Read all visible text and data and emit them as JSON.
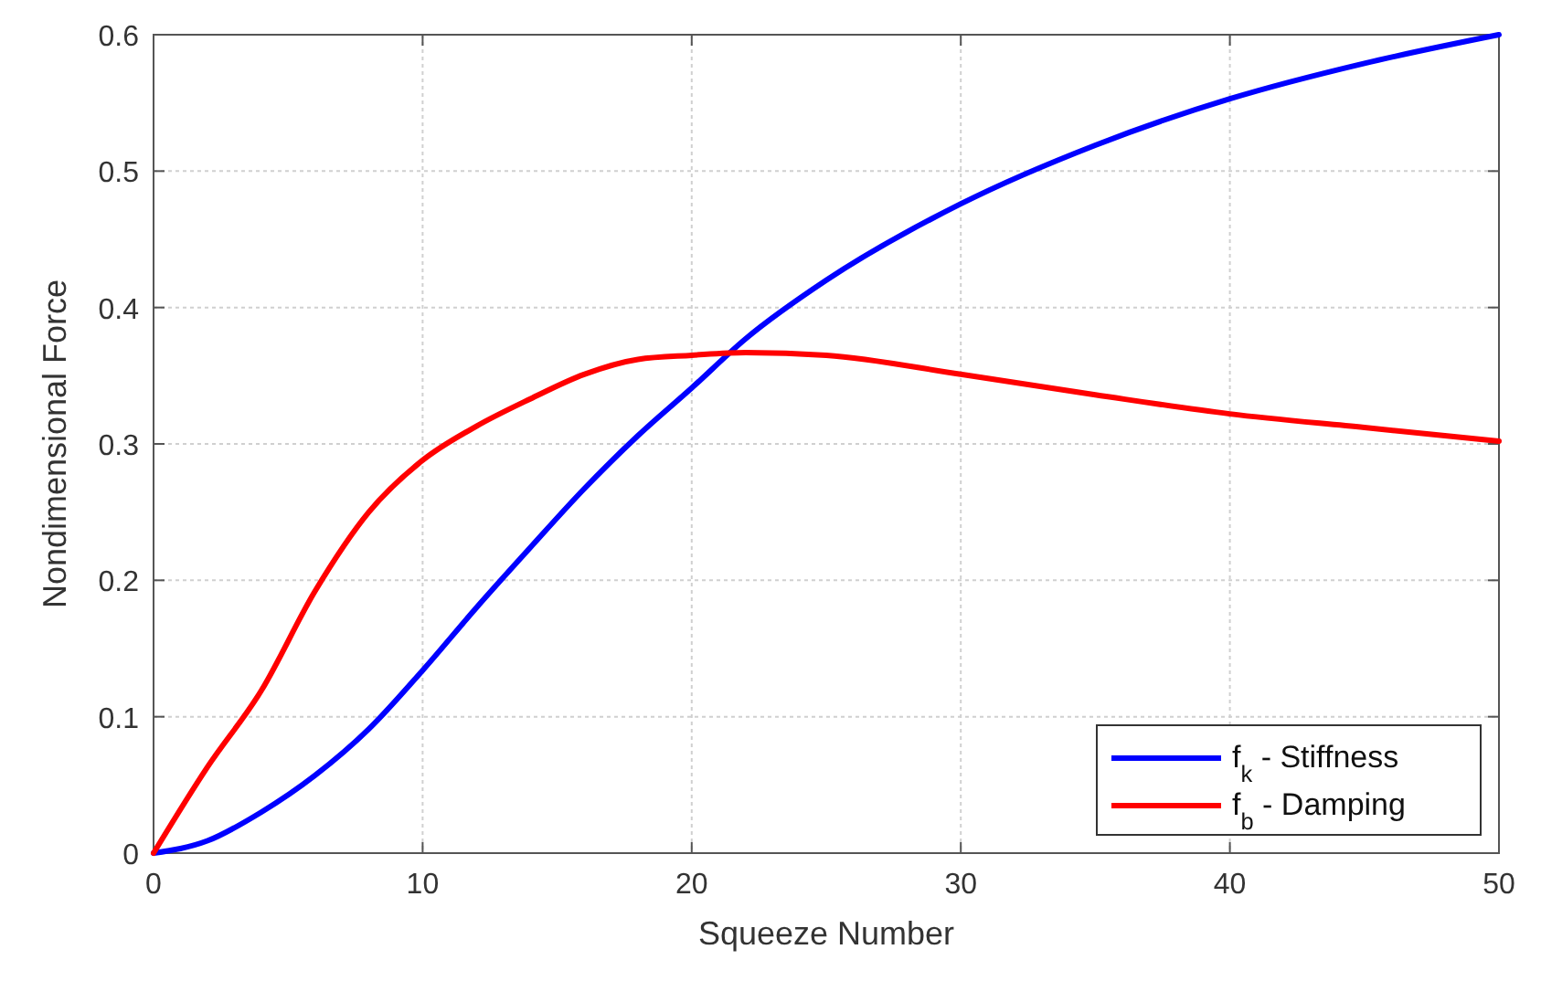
{
  "chart_data": {
    "type": "line",
    "xlabel": "Squeeze Number",
    "ylabel": "Nondimensional Force",
    "x": [
      0,
      2,
      4,
      6,
      8,
      10,
      12,
      14,
      16,
      18,
      20,
      22,
      25,
      30,
      35,
      40,
      45,
      50
    ],
    "series": [
      {
        "name": "f$_{k}$ - Stiffness",
        "color": "#0000ff",
        "values": [
          0,
          0.009,
          0.03,
          0.057,
          0.091,
          0.134,
          0.18,
          0.224,
          0.267,
          0.306,
          0.341,
          0.377,
          0.42,
          0.476,
          0.519,
          0.553,
          0.579,
          0.6
        ]
      },
      {
        "name": "f$_{b}$ - Damping",
        "color": "#ff0000",
        "values": [
          0,
          0.063,
          0.119,
          0.192,
          0.25,
          0.288,
          0.313,
          0.333,
          0.351,
          0.362,
          0.365,
          0.367,
          0.365,
          0.351,
          0.336,
          0.322,
          0.312,
          0.302
        ]
      }
    ],
    "xlim": [
      0,
      50
    ],
    "xticks": [
      0,
      10,
      20,
      30,
      40,
      50
    ],
    "ylim": [
      0,
      0.6
    ],
    "yticks": [
      0,
      0.1,
      0.2,
      0.3,
      0.4,
      0.5,
      0.6
    ],
    "grid": true,
    "legend": "bottom right",
    "line_style": "solid",
    "marker": "none"
  }
}
